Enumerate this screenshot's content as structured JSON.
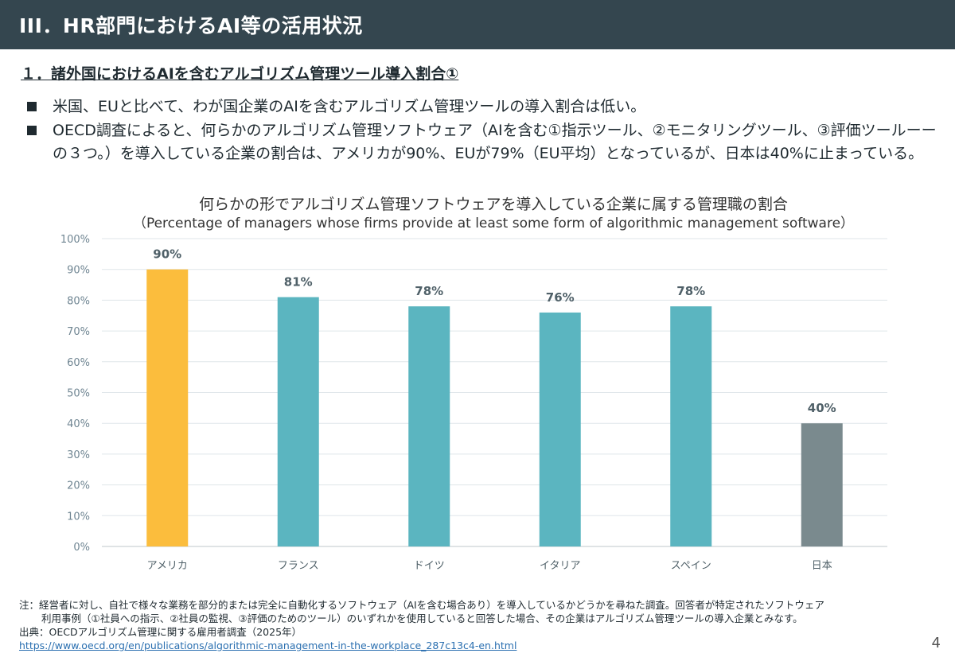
{
  "header": {
    "title": "III．HR部門におけるAI等の活用状況"
  },
  "subtitle": "１．諸外国におけるAIを含むアルゴリズム管理ツール導入割合①",
  "bullets": [
    "米国、EUと比べて、わが国企業のAIを含むアルゴリズム管理ツールの導入割合は低い。",
    "OECD調査によると、何らかのアルゴリズム管理ソフトウェア（AIを含む①指示ツール、②モニタリングツール、③評価ツールーーの３つ。）を導入している企業の割合は、アメリカが90%、EUが79%（EU平均）となっているが、日本は40%に止まっている。"
  ],
  "chart_data": {
    "type": "bar",
    "title": "何らかの形でアルゴリズム管理ソフトウェアを導入している企業に属する管理職の割合",
    "subtitle": "（Percentage of managers whose firms provide at least some form of algorithmic management software）",
    "categories": [
      "アメリカ",
      "フランス",
      "ドイツ",
      "イタリア",
      "スペイン",
      "日本"
    ],
    "values": [
      90,
      81,
      78,
      76,
      78,
      40
    ],
    "data_labels": [
      "90%",
      "81%",
      "78%",
      "76%",
      "78%",
      "40%"
    ],
    "colors": [
      "#fbbd3d",
      "#5bb5c0",
      "#5bb5c0",
      "#5bb5c0",
      "#5bb5c0",
      "#7a8a8e"
    ],
    "ylim": [
      0,
      100
    ],
    "yticks": [
      "0%",
      "10%",
      "20%",
      "30%",
      "40%",
      "50%",
      "60%",
      "70%",
      "80%",
      "90%",
      "100%"
    ],
    "grid": true,
    "legend": "none"
  },
  "notes": {
    "note_line1": "注：経営者に対し、自社で様々な業務を部分的または完全に自動化するソフトウェア（AIを含む場合あり）を導入しているかどうかを尋ねた調査。回答者が特定されたソフトウェア",
    "note_line2": "利用事例（①社員への指示、②社員の監視、③評価のためのツール）のいずれかを使用していると回答した場合、その企業はアルゴリズム管理ツールの導入企業とみなす。",
    "source": "出典：OECDアルゴリズム管理に関する雇用者調査（2025年）",
    "url": "https://www.oecd.org/en/publications/algorithmic-management-in-the-workplace_287c13c4-en.html"
  },
  "page_number": "4"
}
